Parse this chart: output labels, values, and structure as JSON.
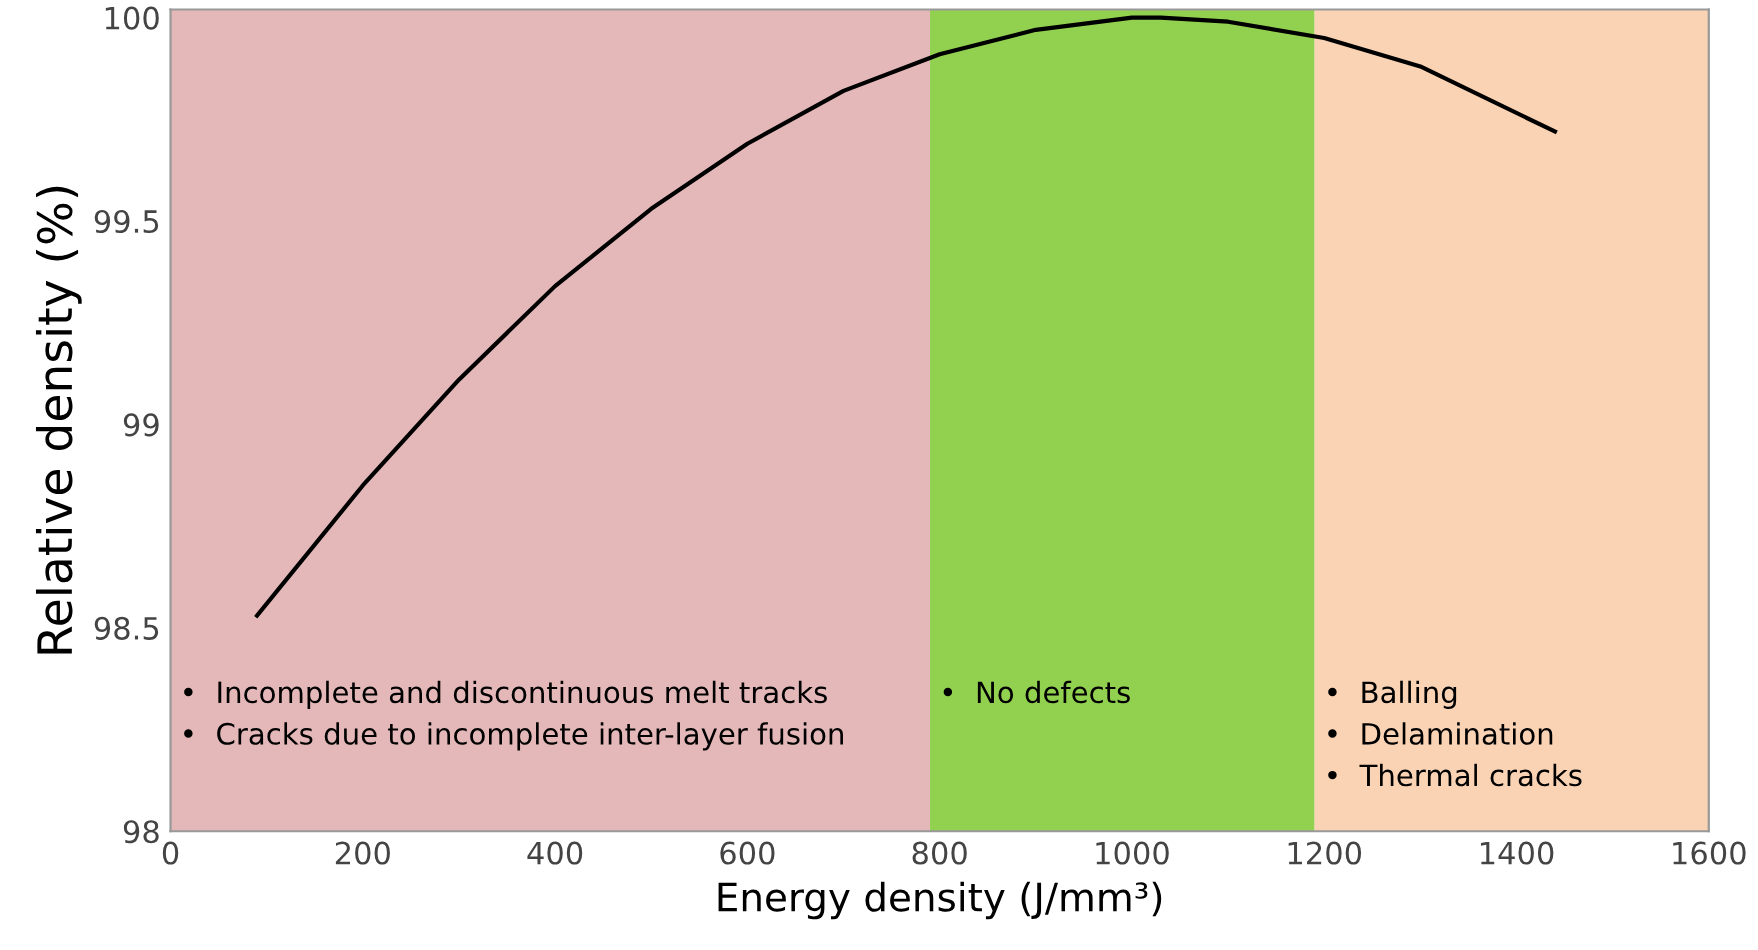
{
  "chart_data": {
    "type": "line",
    "xlabel": "Energy density (J/mm³)",
    "ylabel": "Relative density (%)",
    "x": [
      90,
      200,
      300,
      400,
      500,
      600,
      700,
      800,
      900,
      1000,
      1030,
      1100,
      1200,
      1300,
      1440
    ],
    "series": [
      {
        "color": "#000000",
        "values": [
          98.53,
          98.85,
          99.11,
          99.34,
          99.53,
          99.69,
          99.82,
          99.91,
          99.97,
          100.0,
          100.0,
          99.99,
          99.95,
          99.88,
          99.72
        ]
      }
    ],
    "xlim": [
      0,
      1600
    ],
    "ylim": [
      98,
      100.02
    ],
    "xticks": [
      0,
      200,
      400,
      600,
      800,
      1000,
      1200,
      1400,
      1600
    ],
    "yticks": [
      98,
      98.5,
      99,
      99.5,
      100
    ],
    "bands": [
      {
        "axis": "x",
        "from": 0,
        "to": 790,
        "label": "•  Incomplete and discontinuous melt tracks\n•  Cracks due to incomplete inter-layer fusion",
        "color": "#e4b8b9"
      },
      {
        "axis": "x",
        "from": 790,
        "to": 1190,
        "label": "•  No defects",
        "color": "#92d050"
      },
      {
        "axis": "x",
        "from": 1190,
        "to": 1600,
        "label": "•  Balling\n•  Delamination\n•  Thermal cracks",
        "color": "#f9d3b4"
      }
    ],
    "grid": false,
    "legend": false,
    "marker": "none",
    "line_style": "solid"
  }
}
